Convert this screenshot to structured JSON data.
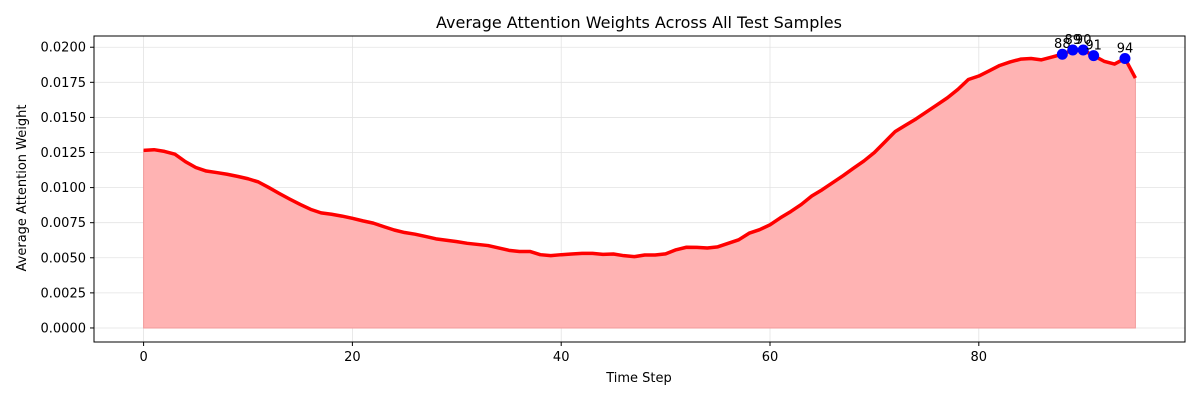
{
  "chart_data": {
    "type": "area",
    "title": "Average Attention Weights Across All Test Samples",
    "xlabel": "Time Step",
    "ylabel": "Average Attention Weight",
    "xlim": [
      -4.75,
      99.75
    ],
    "ylim": [
      -0.001,
      0.0208
    ],
    "xticks": [
      0,
      20,
      40,
      60,
      80
    ],
    "yticks": [
      0.0,
      0.0025,
      0.005,
      0.0075,
      0.01,
      0.0125,
      0.015,
      0.0175,
      0.02
    ],
    "xtick_labels": [
      "0",
      "20",
      "40",
      "60",
      "80"
    ],
    "ytick_labels": [
      "0.0000",
      "0.0025",
      "0.0050",
      "0.0075",
      "0.0100",
      "0.0125",
      "0.0150",
      "0.0175",
      "0.0200"
    ],
    "grid": true,
    "line_color": "#ff0000",
    "fill_color": "#ffb3b3",
    "marker_color": "#0000ff",
    "series": [
      {
        "x": [
          0,
          1,
          2,
          3,
          4,
          5,
          6,
          7,
          8,
          9,
          10,
          11,
          12,
          13,
          14,
          15,
          16,
          17,
          18,
          19,
          20,
          21,
          22,
          23,
          24,
          25,
          26,
          27,
          28,
          29,
          30,
          31,
          32,
          33,
          34,
          35,
          36,
          37,
          38,
          39,
          40,
          41,
          42,
          43,
          44,
          45,
          46,
          47,
          48,
          49,
          50,
          51,
          52,
          53,
          54,
          55,
          56,
          57,
          58,
          59,
          60,
          61,
          62,
          63,
          64,
          65,
          66,
          67,
          68,
          69,
          70,
          71,
          72,
          73,
          74,
          75,
          76,
          77,
          78,
          79,
          80,
          81,
          82,
          83,
          84,
          85,
          86,
          87,
          88,
          89,
          90,
          91,
          92,
          93,
          94,
          95
        ],
        "y": [
          0.01265,
          0.0127,
          0.01258,
          0.01238,
          0.01185,
          0.01143,
          0.01118,
          0.01107,
          0.01095,
          0.0108,
          0.01063,
          0.0104,
          0.01,
          0.00958,
          0.00918,
          0.0088,
          0.00845,
          0.0082,
          0.0081,
          0.00797,
          0.00781,
          0.00763,
          0.00747,
          0.00722,
          0.00698,
          0.0068,
          0.00668,
          0.00652,
          0.00635,
          0.00625,
          0.00615,
          0.00603,
          0.00595,
          0.00587,
          0.0057,
          0.00553,
          0.00545,
          0.00545,
          0.00522,
          0.00515,
          0.00522,
          0.00527,
          0.00531,
          0.00531,
          0.00524,
          0.00527,
          0.00515,
          0.00508,
          0.0052,
          0.0052,
          0.00528,
          0.00557,
          0.00575,
          0.00574,
          0.0057,
          0.00578,
          0.00603,
          0.00628,
          0.00675,
          0.007,
          0.00735,
          0.00785,
          0.0083,
          0.0088,
          0.0094,
          0.00985,
          0.01035,
          0.01085,
          0.01138,
          0.0119,
          0.0125,
          0.01325,
          0.014,
          0.01445,
          0.0149,
          0.0154,
          0.0159,
          0.0164,
          0.017,
          0.0177,
          0.01795,
          0.01832,
          0.0187,
          0.01895,
          0.01915,
          0.0192,
          0.0191,
          0.0193,
          0.0195,
          0.0198,
          0.0198,
          0.0194,
          0.019,
          0.0188,
          0.0192,
          0.0178
        ]
      }
    ],
    "highlighted_points": [
      {
        "label": "88",
        "x": 88,
        "y": 0.0195
      },
      {
        "label": "89",
        "x": 89,
        "y": 0.0198
      },
      {
        "label": "90",
        "x": 90,
        "y": 0.0198
      },
      {
        "label": "91",
        "x": 91,
        "y": 0.0194
      },
      {
        "label": "94",
        "x": 94,
        "y": 0.0192
      }
    ]
  }
}
